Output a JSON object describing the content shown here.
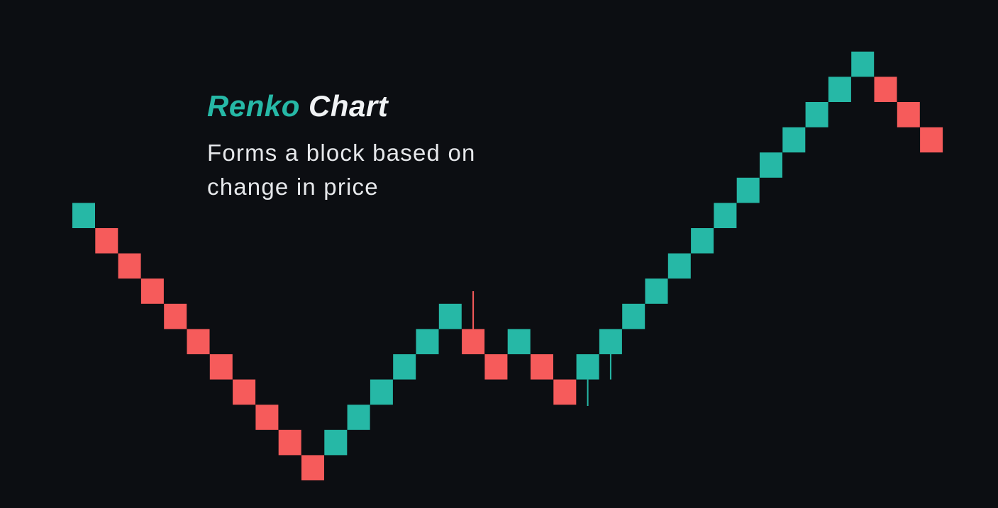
{
  "title": {
    "accent": "Renko",
    "main": "Chart"
  },
  "subtitle": "Forms a block based on change in price",
  "colors": {
    "background": "#0c0e12",
    "up": "#26b8a6",
    "down": "#f65b5b",
    "title_accent": "#26b8a6",
    "text": "#f0f2f4"
  },
  "chart_data": {
    "type": "renko",
    "brick_size": 1,
    "ylim": [
      -1,
      17
    ],
    "grid": false,
    "bricks": [
      {
        "i": 0,
        "low": 10,
        "high": 11,
        "dir": "up"
      },
      {
        "i": 1,
        "low": 9,
        "high": 10,
        "dir": "down"
      },
      {
        "i": 2,
        "low": 8,
        "high": 9,
        "dir": "down"
      },
      {
        "i": 3,
        "low": 7,
        "high": 8,
        "dir": "down"
      },
      {
        "i": 4,
        "low": 6,
        "high": 7,
        "dir": "down"
      },
      {
        "i": 5,
        "low": 5,
        "high": 6,
        "dir": "down"
      },
      {
        "i": 6,
        "low": 4,
        "high": 5,
        "dir": "down"
      },
      {
        "i": 7,
        "low": 3,
        "high": 4,
        "dir": "down"
      },
      {
        "i": 8,
        "low": 2,
        "high": 3,
        "dir": "down"
      },
      {
        "i": 9,
        "low": 1,
        "high": 2,
        "dir": "down"
      },
      {
        "i": 10,
        "low": 0,
        "high": 1,
        "dir": "down"
      },
      {
        "i": 11,
        "low": 1,
        "high": 2,
        "dir": "up"
      },
      {
        "i": 12,
        "low": 2,
        "high": 3,
        "dir": "up"
      },
      {
        "i": 13,
        "low": 3,
        "high": 4,
        "dir": "up"
      },
      {
        "i": 14,
        "low": 4,
        "high": 5,
        "dir": "up"
      },
      {
        "i": 15,
        "low": 5,
        "high": 6,
        "dir": "up"
      },
      {
        "i": 16,
        "low": 6,
        "high": 7,
        "dir": "up"
      },
      {
        "i": 17,
        "low": 5,
        "high": 6,
        "dir": "down",
        "wick_high": 7.5
      },
      {
        "i": 18,
        "low": 4,
        "high": 5,
        "dir": "down"
      },
      {
        "i": 19,
        "low": 5,
        "high": 6,
        "dir": "up"
      },
      {
        "i": 20,
        "low": 4,
        "high": 5,
        "dir": "down"
      },
      {
        "i": 21,
        "low": 3,
        "high": 4,
        "dir": "down"
      },
      {
        "i": 22,
        "low": 4,
        "high": 5,
        "dir": "up",
        "wick_low": 2.95
      },
      {
        "i": 23,
        "low": 5,
        "high": 6,
        "dir": "up",
        "wick_low": 4.0
      },
      {
        "i": 24,
        "low": 6,
        "high": 7,
        "dir": "up"
      },
      {
        "i": 25,
        "low": 7,
        "high": 8,
        "dir": "up"
      },
      {
        "i": 26,
        "low": 8,
        "high": 9,
        "dir": "up"
      },
      {
        "i": 27,
        "low": 9,
        "high": 10,
        "dir": "up"
      },
      {
        "i": 28,
        "low": 10,
        "high": 11,
        "dir": "up"
      },
      {
        "i": 29,
        "low": 11,
        "high": 12,
        "dir": "up"
      },
      {
        "i": 30,
        "low": 12,
        "high": 13,
        "dir": "up"
      },
      {
        "i": 31,
        "low": 13,
        "high": 14,
        "dir": "up"
      },
      {
        "i": 32,
        "low": 14,
        "high": 15,
        "dir": "up"
      },
      {
        "i": 33,
        "low": 15,
        "high": 16,
        "dir": "up"
      },
      {
        "i": 34,
        "low": 16,
        "high": 17,
        "dir": "up"
      },
      {
        "i": 35,
        "low": 15,
        "high": 16,
        "dir": "down"
      },
      {
        "i": 36,
        "low": 14,
        "high": 15,
        "dir": "down"
      },
      {
        "i": 37,
        "low": 13,
        "high": 14,
        "dir": "down"
      }
    ]
  }
}
